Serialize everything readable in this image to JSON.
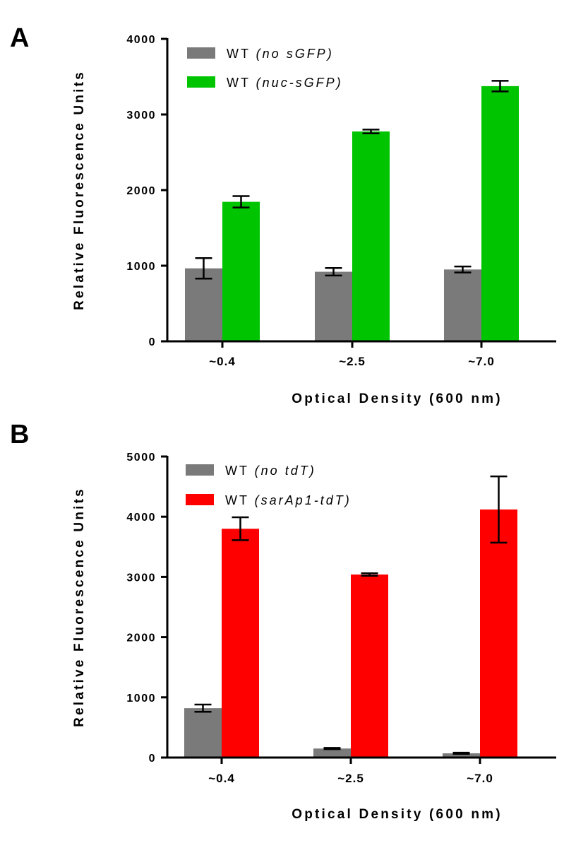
{
  "chart_data": [
    {
      "panel": "A",
      "type": "bar",
      "categories": [
        "~0.4",
        "~2.5",
        "~7.0"
      ],
      "series": [
        {
          "name": "WT",
          "qualifier": "(no sGFP)",
          "color": "#7a7a7a",
          "values": [
            965,
            920,
            950
          ],
          "errors": [
            135,
            50,
            40
          ]
        },
        {
          "name": "WT",
          "qualifier": "(nuc-sGFP)",
          "color": "#00c400",
          "values": [
            1845,
            2775,
            3375
          ],
          "errors": [
            75,
            25,
            70
          ]
        }
      ],
      "ylim": [
        0,
        4000
      ],
      "yticks": [
        "0",
        "1000",
        "2000",
        "3000",
        "4000"
      ],
      "xlabel": "Optical Density (600 nm)",
      "ylabel": "Relative Fluorescence  Units"
    },
    {
      "panel": "B",
      "type": "bar",
      "categories": [
        "~0.4",
        "~2.5",
        "~7.0"
      ],
      "series": [
        {
          "name": "WT",
          "qualifier": "(no tdT)",
          "color": "#7a7a7a",
          "values": [
            820,
            150,
            70
          ],
          "errors": [
            60,
            10,
            10
          ]
        },
        {
          "name": "WT",
          "qualifier": "(sarAp1-tdT)",
          "color": "#ff0000",
          "values": [
            3800,
            3040,
            4120
          ],
          "errors": [
            190,
            20,
            550
          ]
        }
      ],
      "ylim": [
        0,
        5000
      ],
      "yticks": [
        "0",
        "1000",
        "2000",
        "3000",
        "4000",
        "5000"
      ],
      "xlabel": "Optical Density (600 nm)",
      "ylabel": "Relative Fluorescence  Units"
    }
  ]
}
